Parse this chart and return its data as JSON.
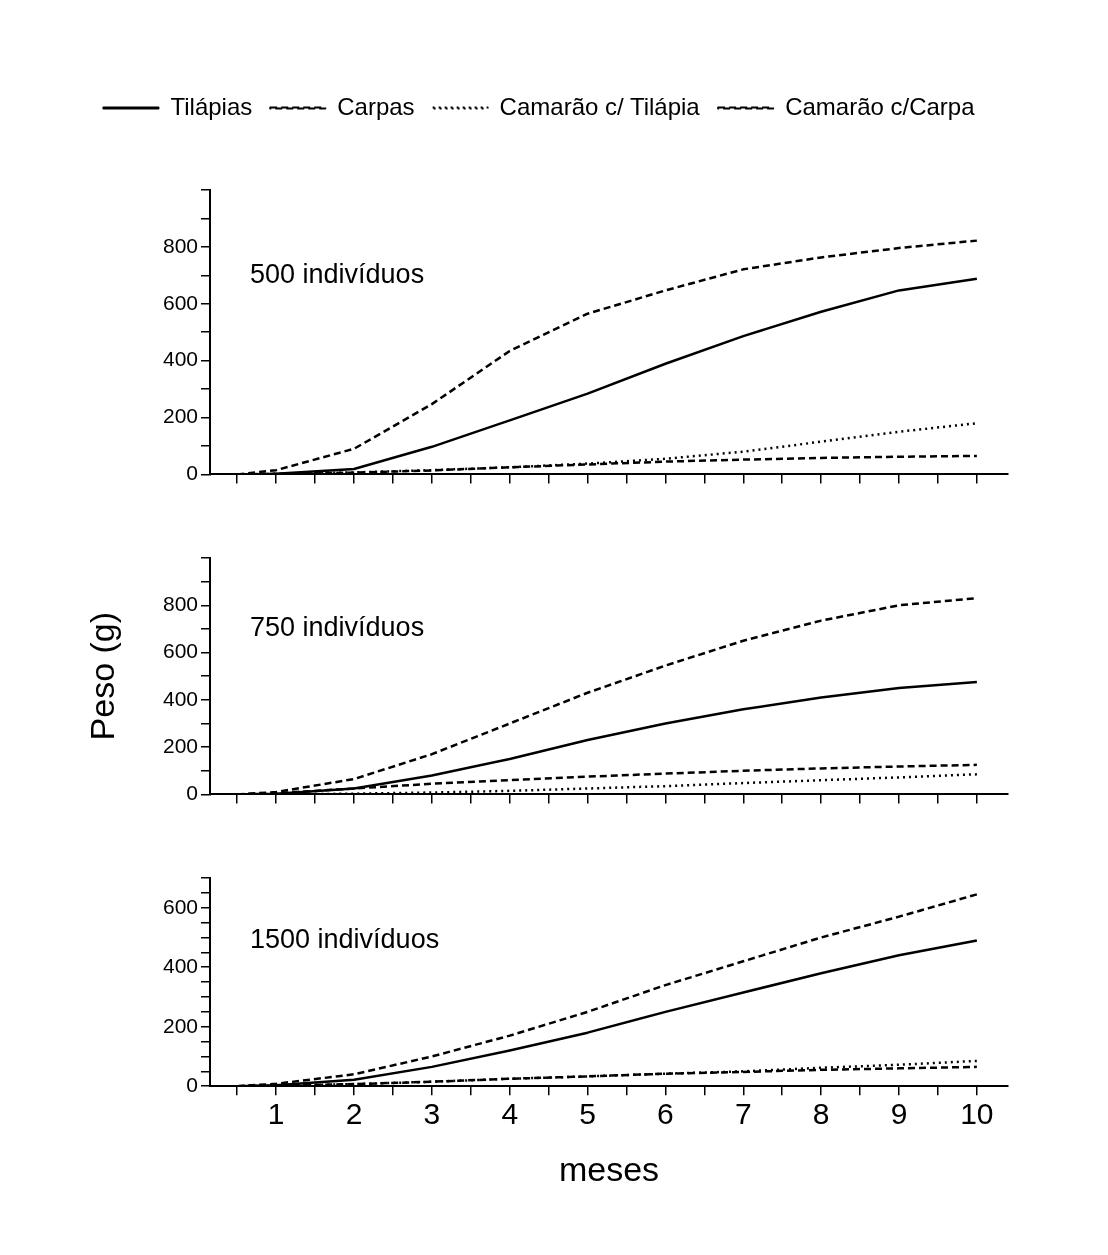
{
  "chart_data": [
    {
      "type": "line",
      "legend": "top",
      "marker": "none",
      "tick_labels": "y",
      "annotations": [
        "500 indivíduos"
      ],
      "x": [
        0.5,
        1,
        2,
        3,
        4,
        5,
        6,
        7,
        8,
        9,
        10
      ],
      "xlim": [
        0.15,
        10.4
      ],
      "xticks": [
        {
          "value": 0.5,
          "label": null
        },
        1,
        {
          "value": 1.5,
          "label": null
        },
        2,
        {
          "value": 2.5,
          "label": null
        },
        3,
        {
          "value": 3.5,
          "label": null
        },
        4,
        {
          "value": 4.5,
          "label": null
        },
        5,
        {
          "value": 5.5,
          "label": null
        },
        6,
        {
          "value": 6.5,
          "label": null
        },
        7,
        {
          "value": 7.5,
          "label": null
        },
        8,
        {
          "value": 8.5,
          "label": null
        },
        9,
        {
          "value": 9.5,
          "label": null
        },
        10
      ],
      "ylim": [
        0,
        1000
      ],
      "yticks": [
        0,
        {
          "value": 100,
          "label": null
        },
        200,
        {
          "value": 300,
          "label": null
        },
        400,
        {
          "value": 500,
          "label": null
        },
        600,
        {
          "value": 700,
          "label": null
        },
        800,
        {
          "value": 900,
          "label": null
        },
        {
          "value": 1000,
          "label": null
        }
      ],
      "series": [
        {
          "name": "Tilápias",
          "color": "#000000",
          "line_style": "solid",
          "values": [
            0,
            2,
            19,
            97,
            190,
            284,
            389,
            486,
            572,
            647,
            688
          ]
        },
        {
          "name": "Carpas",
          "color": "#000000",
          "line_style": "dashed",
          "values": [
            0,
            15,
            90,
            247,
            434,
            565,
            647,
            721,
            763,
            796,
            822
          ]
        },
        {
          "name": "Camarão c/ Tilápia",
          "color": "#000000",
          "line_style": "dotted",
          "values": [
            0,
            2,
            7,
            15,
            25,
            38,
            55,
            80,
            115,
            150,
            180
          ]
        },
        {
          "name": "Camarão c/Carpa",
          "color": "#000000",
          "line_style": "dashed",
          "values": [
            0,
            2,
            6,
            14,
            25,
            35,
            45,
            52,
            58,
            62,
            65
          ]
        }
      ]
    },
    {
      "type": "line",
      "marker": "none",
      "tick_labels": "y",
      "ylabel": "Peso (g)",
      "annotations": [
        "750 indivíduos"
      ],
      "x": [
        0.5,
        1,
        2,
        3,
        4,
        5,
        6,
        7,
        8,
        9,
        10
      ],
      "xlim": [
        0.15,
        10.4
      ],
      "xticks": [
        {
          "value": 0.5,
          "label": null
        },
        1,
        {
          "value": 1.5,
          "label": null
        },
        2,
        {
          "value": 2.5,
          "label": null
        },
        3,
        {
          "value": 3.5,
          "label": null
        },
        4,
        {
          "value": 4.5,
          "label": null
        },
        5,
        {
          "value": 5.5,
          "label": null
        },
        6,
        {
          "value": 6.5,
          "label": null
        },
        7,
        {
          "value": 7.5,
          "label": null
        },
        8,
        {
          "value": 8.5,
          "label": null
        },
        9,
        {
          "value": 9.5,
          "label": null
        },
        10
      ],
      "ylim": [
        0,
        1000
      ],
      "yticks": [
        0,
        {
          "value": 100,
          "label": null
        },
        200,
        {
          "value": 300,
          "label": null
        },
        400,
        {
          "value": 500,
          "label": null
        },
        600,
        {
          "value": 700,
          "label": null
        },
        800,
        {
          "value": 900,
          "label": null
        },
        {
          "value": 1000,
          "label": null
        }
      ],
      "series": [
        {
          "color": "#000000",
          "line_style": "solid",
          "values": [
            0,
            3,
            25,
            80,
            150,
            230,
            300,
            360,
            410,
            450,
            475
          ]
        },
        {
          "color": "#000000",
          "line_style": "dashed",
          "values": [
            0,
            10,
            65,
            170,
            300,
            430,
            545,
            650,
            735,
            800,
            830
          ]
        },
        {
          "color": "#000000",
          "line_style": "dotted",
          "values": [
            0,
            0,
            3,
            8,
            15,
            25,
            35,
            48,
            60,
            72,
            85
          ]
        },
        {
          "color": "#000000",
          "line_style": "dashed",
          "values": [
            0,
            5,
            25,
            45,
            60,
            75,
            88,
            100,
            110,
            118,
            125
          ]
        }
      ]
    },
    {
      "type": "line",
      "marker": "none",
      "xlabel": "meses",
      "annotations": [
        "1500 indivíduos"
      ],
      "x": [
        0.5,
        1,
        2,
        3,
        4,
        5,
        6,
        7,
        8,
        9,
        10
      ],
      "xlim": [
        0.15,
        10.4
      ],
      "xticks": [
        {
          "value": 0.5,
          "label": null
        },
        1,
        {
          "value": 1.5,
          "label": null
        },
        2,
        {
          "value": 2.5,
          "label": null
        },
        3,
        {
          "value": 3.5,
          "label": null
        },
        4,
        {
          "value": 4.5,
          "label": null
        },
        5,
        {
          "value": 5.5,
          "label": null
        },
        6,
        {
          "value": 6.5,
          "label": null
        },
        7,
        {
          "value": 7.5,
          "label": null
        },
        8,
        {
          "value": 8.5,
          "label": null
        },
        9,
        {
          "value": 9.5,
          "label": null
        },
        10
      ],
      "ylim": [
        0,
        700
      ],
      "yticks": [
        0,
        {
          "value": 50,
          "label": null
        },
        {
          "value": 100,
          "label": null
        },
        {
          "value": 150,
          "label": null
        },
        200,
        {
          "value": 250,
          "label": null
        },
        {
          "value": 300,
          "label": null
        },
        {
          "value": 350,
          "label": null
        },
        400,
        {
          "value": 450,
          "label": null
        },
        {
          "value": 500,
          "label": null
        },
        {
          "value": 550,
          "label": null
        },
        600,
        {
          "value": 650,
          "label": null
        },
        {
          "value": 700,
          "label": null
        }
      ],
      "series": [
        {
          "color": "#000000",
          "line_style": "solid",
          "values": [
            0,
            3,
            22,
            65,
            120,
            180,
            250,
            315,
            380,
            440,
            490
          ]
        },
        {
          "color": "#000000",
          "line_style": "dashed",
          "values": [
            0,
            8,
            40,
            100,
            170,
            250,
            340,
            420,
            500,
            570,
            645
          ]
        },
        {
          "color": "#000000",
          "line_style": "dotted",
          "values": [
            0,
            2,
            7,
            15,
            25,
            33,
            42,
            50,
            62,
            72,
            85
          ]
        },
        {
          "color": "#000000",
          "line_style": "dashed",
          "values": [
            0,
            2,
            7,
            15,
            25,
            33,
            42,
            48,
            55,
            60,
            65
          ]
        }
      ]
    }
  ]
}
